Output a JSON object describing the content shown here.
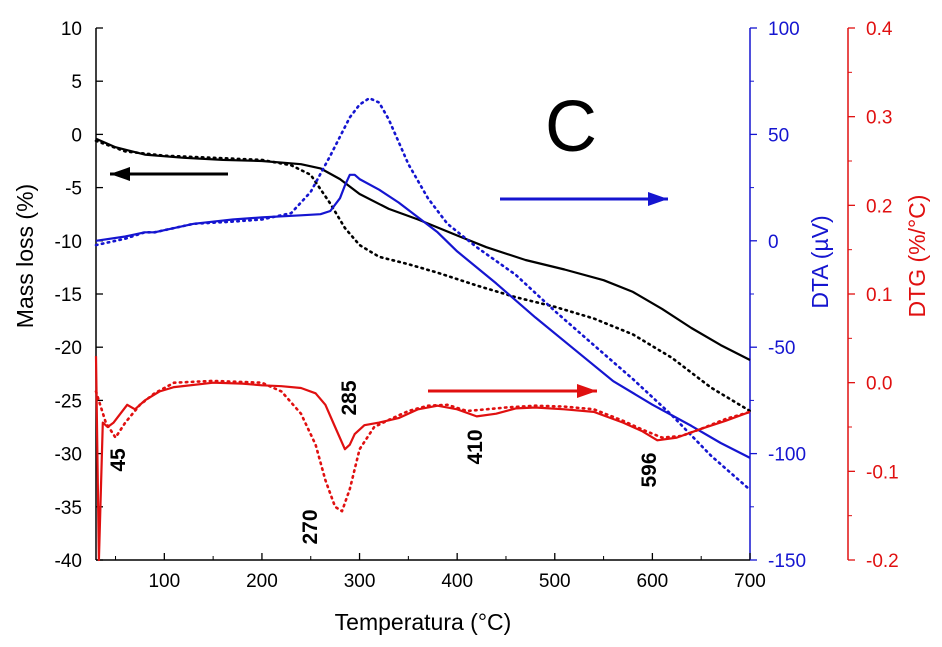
{
  "colors": {
    "mass": "#000000",
    "dta": "#1515d0",
    "dtg": "#e01010"
  },
  "chart_data": {
    "type": "line",
    "panel_label": "C",
    "xlabel": "Temperatura (°C)",
    "xlim": [
      30,
      700
    ],
    "x_ticks": [
      100,
      200,
      300,
      400,
      500,
      600,
      700
    ],
    "axes": {
      "mass": {
        "label": "Mass loss (%)",
        "ylim": [
          -40,
          10
        ],
        "ticks": [
          10,
          5,
          0,
          -5,
          -10,
          -15,
          -20,
          -25,
          -30,
          -35,
          -40
        ]
      },
      "dta": {
        "label": "DTA (µV)",
        "ylim": [
          -150,
          100
        ],
        "ticks": [
          100,
          50,
          0,
          -50,
          -100,
          -150
        ]
      },
      "dtg": {
        "label": "DTG (%/°C)",
        "ylim": [
          -0.2,
          0.4
        ],
        "ticks": [
          "0.4",
          "0.3",
          "0.2",
          "0.1",
          "0.0",
          "-0.1",
          "-0.2"
        ]
      }
    },
    "series": [
      {
        "axis": "mass",
        "style": "solid",
        "points": [
          [
            30,
            -0.4
          ],
          [
            50,
            -1.2
          ],
          [
            80,
            -1.9
          ],
          [
            120,
            -2.2
          ],
          [
            160,
            -2.4
          ],
          [
            200,
            -2.5
          ],
          [
            240,
            -2.8
          ],
          [
            260,
            -3.2
          ],
          [
            280,
            -4.2
          ],
          [
            300,
            -5.6
          ],
          [
            330,
            -7.0
          ],
          [
            360,
            -8.0
          ],
          [
            400,
            -9.5
          ],
          [
            430,
            -10.6
          ],
          [
            470,
            -11.8
          ],
          [
            510,
            -12.7
          ],
          [
            550,
            -13.7
          ],
          [
            580,
            -14.8
          ],
          [
            610,
            -16.4
          ],
          [
            640,
            -18.2
          ],
          [
            670,
            -19.8
          ],
          [
            700,
            -21.2
          ]
        ]
      },
      {
        "axis": "mass",
        "style": "dotted",
        "points": [
          [
            30,
            -0.6
          ],
          [
            60,
            -1.6
          ],
          [
            100,
            -2.0
          ],
          [
            150,
            -2.2
          ],
          [
            200,
            -2.4
          ],
          [
            230,
            -2.9
          ],
          [
            250,
            -3.8
          ],
          [
            270,
            -6.5
          ],
          [
            285,
            -8.8
          ],
          [
            300,
            -10.4
          ],
          [
            320,
            -11.5
          ],
          [
            350,
            -12.2
          ],
          [
            380,
            -13.0
          ],
          [
            420,
            -14.2
          ],
          [
            460,
            -15.3
          ],
          [
            500,
            -16.2
          ],
          [
            540,
            -17.3
          ],
          [
            580,
            -18.8
          ],
          [
            620,
            -21.0
          ],
          [
            660,
            -23.8
          ],
          [
            700,
            -26.0
          ]
        ]
      },
      {
        "axis": "dta",
        "style": "solid",
        "points": [
          [
            30,
            0
          ],
          [
            60,
            2
          ],
          [
            80,
            4
          ],
          [
            90,
            4
          ],
          [
            100,
            5
          ],
          [
            130,
            8
          ],
          [
            170,
            10
          ],
          [
            200,
            11
          ],
          [
            240,
            12
          ],
          [
            260,
            12.5
          ],
          [
            270,
            14
          ],
          [
            280,
            20
          ],
          [
            285,
            26
          ],
          [
            290,
            31
          ],
          [
            295,
            31
          ],
          [
            300,
            29
          ],
          [
            320,
            24
          ],
          [
            340,
            18
          ],
          [
            360,
            11
          ],
          [
            380,
            4
          ],
          [
            400,
            -5
          ],
          [
            440,
            -20
          ],
          [
            480,
            -36
          ],
          [
            520,
            -51
          ],
          [
            560,
            -66
          ],
          [
            600,
            -77
          ],
          [
            640,
            -87
          ],
          [
            670,
            -95
          ],
          [
            700,
            -102
          ]
        ]
      },
      {
        "axis": "dta",
        "style": "dotted",
        "points": [
          [
            30,
            -2
          ],
          [
            60,
            1
          ],
          [
            80,
            4
          ],
          [
            90,
            4
          ],
          [
            100,
            5
          ],
          [
            130,
            8
          ],
          [
            170,
            9
          ],
          [
            200,
            10
          ],
          [
            230,
            13
          ],
          [
            250,
            23
          ],
          [
            270,
            40
          ],
          [
            290,
            58
          ],
          [
            300,
            64
          ],
          [
            310,
            67
          ],
          [
            320,
            65
          ],
          [
            330,
            57
          ],
          [
            350,
            36
          ],
          [
            370,
            20
          ],
          [
            390,
            8
          ],
          [
            420,
            -3
          ],
          [
            460,
            -16
          ],
          [
            500,
            -33
          ],
          [
            540,
            -49
          ],
          [
            580,
            -65
          ],
          [
            620,
            -82
          ],
          [
            660,
            -101
          ],
          [
            700,
            -117
          ]
        ]
      },
      {
        "axis": "dtg",
        "style": "solid",
        "points": [
          [
            30,
            0.03
          ],
          [
            33,
            -0.2
          ],
          [
            37,
            -0.045
          ],
          [
            42,
            -0.05
          ],
          [
            48,
            -0.045
          ],
          [
            55,
            -0.035
          ],
          [
            62,
            -0.025
          ],
          [
            70,
            -0.03
          ],
          [
            80,
            -0.02
          ],
          [
            95,
            -0.01
          ],
          [
            110,
            -0.005
          ],
          [
            150,
            0
          ],
          [
            180,
            -0.001
          ],
          [
            200,
            -0.003
          ],
          [
            220,
            -0.004
          ],
          [
            240,
            -0.006
          ],
          [
            255,
            -0.012
          ],
          [
            265,
            -0.025
          ],
          [
            275,
            -0.05
          ],
          [
            285,
            -0.075
          ],
          [
            290,
            -0.07
          ],
          [
            295,
            -0.058
          ],
          [
            305,
            -0.048
          ],
          [
            320,
            -0.045
          ],
          [
            340,
            -0.04
          ],
          [
            360,
            -0.03
          ],
          [
            380,
            -0.026
          ],
          [
            400,
            -0.03
          ],
          [
            420,
            -0.038
          ],
          [
            440,
            -0.035
          ],
          [
            460,
            -0.029
          ],
          [
            480,
            -0.028
          ],
          [
            510,
            -0.03
          ],
          [
            540,
            -0.033
          ],
          [
            570,
            -0.045
          ],
          [
            590,
            -0.055
          ],
          [
            605,
            -0.065
          ],
          [
            625,
            -0.062
          ],
          [
            650,
            -0.052
          ],
          [
            675,
            -0.043
          ],
          [
            700,
            -0.033
          ]
        ]
      },
      {
        "axis": "dtg",
        "style": "dotted",
        "points": [
          [
            30,
            -0.01
          ],
          [
            40,
            -0.045
          ],
          [
            50,
            -0.062
          ],
          [
            60,
            -0.045
          ],
          [
            75,
            -0.025
          ],
          [
            90,
            -0.012
          ],
          [
            110,
            0
          ],
          [
            150,
            0.002
          ],
          [
            200,
            0
          ],
          [
            220,
            -0.01
          ],
          [
            240,
            -0.035
          ],
          [
            255,
            -0.07
          ],
          [
            265,
            -0.11
          ],
          [
            275,
            -0.14
          ],
          [
            282,
            -0.145
          ],
          [
            290,
            -0.12
          ],
          [
            300,
            -0.075
          ],
          [
            315,
            -0.05
          ],
          [
            330,
            -0.042
          ],
          [
            350,
            -0.032
          ],
          [
            370,
            -0.026
          ],
          [
            390,
            -0.025
          ],
          [
            410,
            -0.032
          ],
          [
            430,
            -0.03
          ],
          [
            450,
            -0.028
          ],
          [
            480,
            -0.026
          ],
          [
            510,
            -0.027
          ],
          [
            540,
            -0.03
          ],
          [
            570,
            -0.043
          ],
          [
            590,
            -0.053
          ],
          [
            610,
            -0.062
          ],
          [
            630,
            -0.06
          ],
          [
            650,
            -0.052
          ],
          [
            675,
            -0.041
          ],
          [
            700,
            -0.033
          ]
        ]
      }
    ],
    "annotations": [
      {
        "text": "45",
        "x": 50,
        "y": -30
      },
      {
        "text": "270",
        "x": 270,
        "y": -36
      },
      {
        "text": "285",
        "x": 285,
        "y": -25
      },
      {
        "text": "410",
        "x": 410,
        "y": -30
      },
      {
        "text": "596",
        "x": 596,
        "y": -32
      }
    ]
  }
}
